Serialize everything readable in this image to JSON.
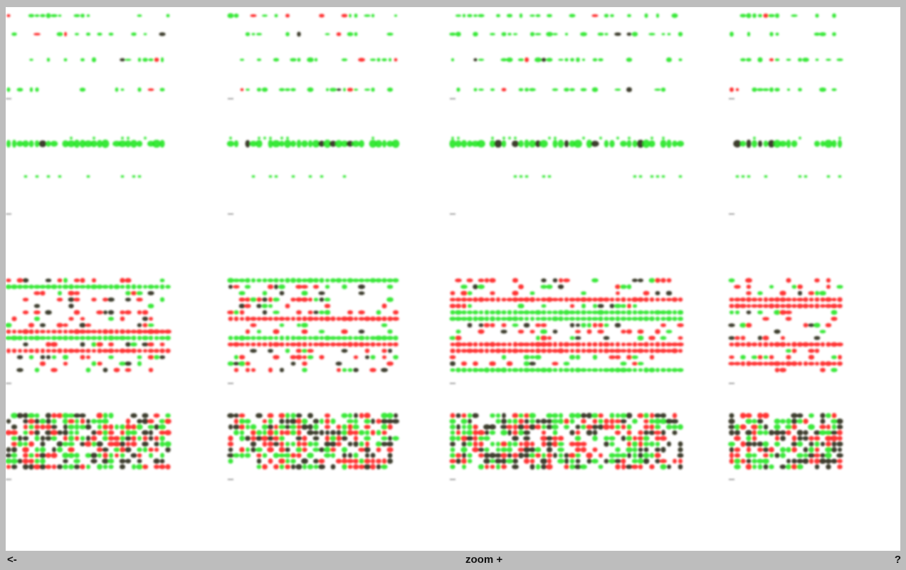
{
  "toolbar": {
    "back_label": "<-",
    "zoom_label": "zoom +",
    "help_label": "?"
  },
  "colors": {
    "frame": "#bdbdbd",
    "background": "#ffffff",
    "up_regulated": "#ff2020",
    "down_regulated": "#22e622",
    "neutral": "#2a2a14"
  },
  "heatmap_panels": {
    "grid_columns": 4,
    "grid_rows": 4,
    "row_styles": [
      "sparse-green",
      "dense-green-band",
      "mixed-red-bands",
      "dense-mixed"
    ]
  }
}
